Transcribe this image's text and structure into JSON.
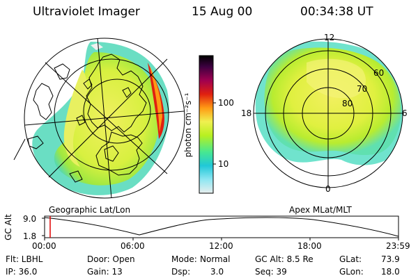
{
  "header": {
    "instrument": "Ultraviolet Imager",
    "date": "15 Aug 00",
    "time": "00:34:38 UT"
  },
  "left_panel": {
    "caption": "Geographic Lat/Lon"
  },
  "right_panel": {
    "caption": "Apex MLat/MLT",
    "mlt_labels": [
      "12",
      "18",
      "6",
      "0"
    ],
    "lat_labels": [
      "60",
      "70",
      "80"
    ]
  },
  "colorbar": {
    "unit_label": "photon cm⁻²s⁻¹",
    "ticks": [
      "100",
      "10"
    ],
    "scale": "log",
    "colors": [
      "#e8eeee",
      "#8ee6f2",
      "#20c8d8",
      "#48e890",
      "#b8f020",
      "#f0f050",
      "#ff9a14",
      "#e02010",
      "#a00050",
      "#3c0040",
      "#000000"
    ]
  },
  "altitude_plot": {
    "ylabel": "GC Alt",
    "y_ticks": [
      "9.0",
      "1.8"
    ],
    "x_ticks": [
      "00:00",
      "06:00",
      "12:00",
      "18:00",
      "23:59"
    ],
    "current_time_marker_color": "#e00000"
  },
  "footer": {
    "filter": "Flt: LBHL",
    "ip": "IP: 36.0",
    "door": "Door: Open",
    "gain": "Gain: 13",
    "mode_label": "Mode:",
    "mode_value": "Normal",
    "dsp_label": "Dsp:",
    "dsp_value": "3.0",
    "gc_alt": "GC Alt: 8.5 Re",
    "seq": "Seq: 39",
    "glat_label": "GLat:",
    "glat_value": "73.9",
    "glon_label": "GLon:",
    "glon_value": "18.0"
  }
}
